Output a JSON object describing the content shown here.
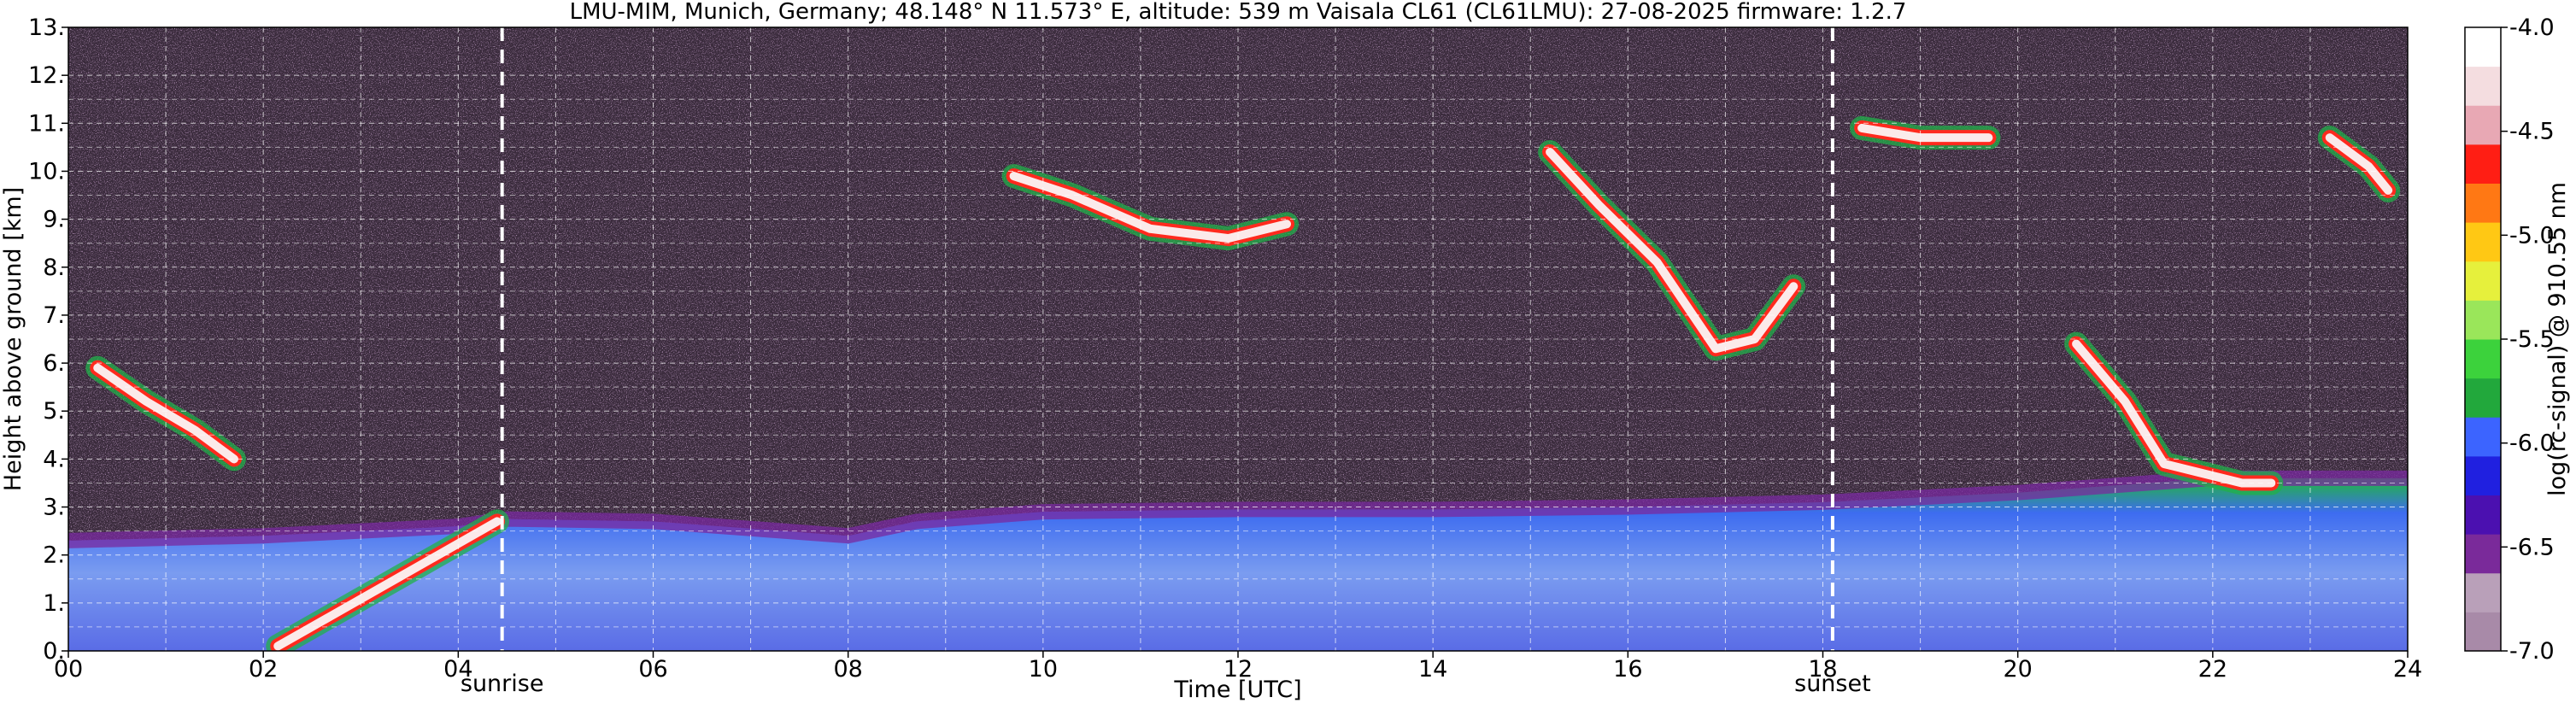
{
  "chart_data": {
    "type": "heatmap",
    "title": "LMU-MIM, Munich, Germany; 48.148° N 11.573° E, altitude: 539 m    Vaisala CL61 (CL61LMU): 27-08-2025    firmware: 1.2.7",
    "xlabel": "Time [UTC]",
    "ylabel": "Height above ground [km]",
    "xlim": [
      0,
      24
    ],
    "ylim": [
      0,
      13
    ],
    "x_ticks": [
      0,
      2,
      4,
      6,
      8,
      10,
      12,
      14,
      16,
      18,
      20,
      22,
      24
    ],
    "x_tick_labels": [
      "00",
      "02",
      "04",
      "06",
      "08",
      "10",
      "12",
      "14",
      "16",
      "18",
      "20",
      "22",
      "24"
    ],
    "y_ticks": [
      0,
      1,
      2,
      3,
      4,
      5,
      6,
      7,
      8,
      9,
      10,
      11,
      12,
      13
    ],
    "y_tick_labels": [
      "0.",
      "1.",
      "2.",
      "3.",
      "4.",
      "5.",
      "6.",
      "7.",
      "8.",
      "9.",
      "10.",
      "11.",
      "12.",
      "13."
    ],
    "grid": true,
    "colorbar": {
      "label": "log(rc-signal) @ 910.55 nm",
      "range": [
        -7.0,
        -4.0
      ],
      "ticks": [
        -7.0,
        -6.5,
        -6.0,
        -5.5,
        -5.0,
        -4.5,
        -4.0
      ],
      "tick_labels": [
        "-7.0",
        "-6.5",
        "-6.0",
        "-5.5",
        "-5.0",
        "-4.5",
        "-4.0"
      ],
      "colors": [
        "#a88aa8",
        "#b9a0b9",
        "#7a2a9a",
        "#4b10b0",
        "#2020e0",
        "#3c64ff",
        "#22a83c",
        "#3cd23c",
        "#9ae65a",
        "#e6f03c",
        "#ffc814",
        "#ff7814",
        "#ff1e14",
        "#e8a8b4",
        "#f4dde0",
        "#ffffff"
      ]
    },
    "vertical_lines": [
      {
        "x": 4.45,
        "label": "sunrise"
      },
      {
        "x": 18.1,
        "label": "sunset"
      }
    ],
    "features": [
      {
        "kind": "boundary_layer",
        "x": [
          0,
          2,
          3,
          4,
          4.5,
          6,
          8,
          8.7,
          10,
          12,
          14,
          16,
          18,
          20,
          22,
          24
        ],
        "y": [
          2.3,
          2.4,
          2.5,
          2.6,
          2.75,
          2.7,
          2.4,
          2.7,
          2.9,
          2.95,
          2.95,
          3.0,
          3.1,
          3.3,
          3.6,
          3.6
        ]
      },
      {
        "kind": "cloud",
        "x": [
          0.3,
          0.8,
          1.3,
          1.7
        ],
        "y": [
          5.9,
          5.2,
          4.6,
          4.0
        ]
      },
      {
        "kind": "cloud",
        "x": [
          2.15,
          4.4
        ],
        "y": [
          0.1,
          2.7
        ]
      },
      {
        "kind": "cloud",
        "x": [
          15.2,
          15.7,
          16.3,
          16.9,
          17.3,
          17.7
        ],
        "y": [
          10.4,
          9.3,
          8.1,
          6.3,
          6.5,
          7.6
        ]
      },
      {
        "kind": "cloud",
        "x": [
          20.6,
          21.1,
          21.5,
          21.9,
          22.3,
          22.6
        ],
        "y": [
          6.4,
          5.2,
          3.9,
          3.7,
          3.5,
          3.5
        ]
      },
      {
        "kind": "cloud",
        "x": [
          9.7,
          10.3,
          11.1,
          11.9,
          12.5
        ],
        "y": [
          9.9,
          9.5,
          8.8,
          8.6,
          8.9
        ]
      },
      {
        "kind": "cloud",
        "x": [
          23.2,
          23.6,
          23.8
        ],
        "y": [
          10.7,
          10.1,
          9.6
        ]
      },
      {
        "kind": "cloud",
        "x": [
          18.4,
          19.0,
          19.7
        ],
        "y": [
          10.9,
          10.7,
          10.7
        ]
      }
    ]
  }
}
